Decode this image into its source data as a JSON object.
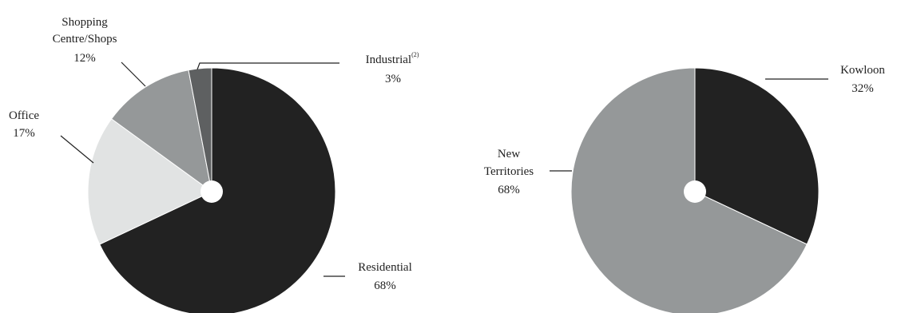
{
  "chart_data": [
    {
      "type": "pie",
      "slices": [
        {
          "label": "Residential",
          "value": 68,
          "value_label": "68%",
          "color": "#222222"
        },
        {
          "label": "Office",
          "value": 17,
          "value_label": "17%",
          "color": "#e1e3e3"
        },
        {
          "label": "Shopping Centre/Shops",
          "label_lines": [
            "Shopping",
            "Centre/Shops"
          ],
          "value": 12,
          "value_label": "12%",
          "color": "#959899"
        },
        {
          "label": "Industrial",
          "label_superscript": "(2)",
          "value": 3,
          "value_label": "3%",
          "color": "#5e6061"
        }
      ]
    },
    {
      "type": "pie",
      "slices": [
        {
          "label": "Kowloon",
          "value": 32,
          "value_label": "32%",
          "color": "#222222"
        },
        {
          "label": "New Territories",
          "label_lines": [
            "New",
            "Territories"
          ],
          "value": 68,
          "value_label": "68%",
          "color": "#959899"
        }
      ]
    }
  ]
}
